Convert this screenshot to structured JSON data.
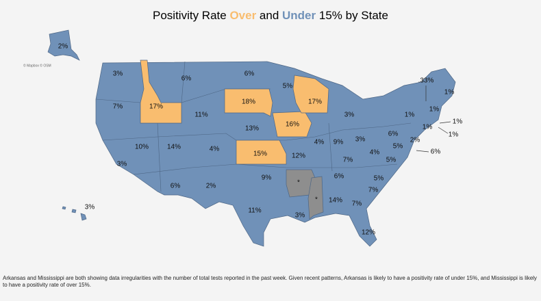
{
  "title": [
    "Positivity Rate ",
    "Over",
    " and ",
    "Under",
    " 15% by State"
  ],
  "attribution": "© Mapbox © OSM",
  "colors": {
    "over": "#f9bd6f",
    "under": "#7091b8",
    "irregular": "#8e8e8e",
    "text": "#111111"
  },
  "labels": {
    "under": [
      "2%",
      "3%",
      "6%",
      "6%",
      "5%",
      "7%",
      "11%",
      "13%",
      "3%",
      ".33%",
      "1%",
      "1%",
      "1%",
      "1%",
      "1%",
      "1%",
      "6%",
      "3%",
      "9%",
      "4%",
      "10%",
      "14%",
      "4%",
      "2%",
      "5%",
      "4%",
      "6%",
      "12%",
      "7%",
      "5%",
      "3%",
      "6%",
      "5%",
      "9%",
      "6%",
      "2%",
      "7%",
      "14%",
      "7%",
      "3%",
      "11%",
      "3%",
      "12%"
    ],
    "over": [
      "17%",
      "18%",
      "17%",
      "16%",
      "15%"
    ],
    "irregular": [
      "*",
      "*"
    ]
  },
  "footnote": "Arkansas and Mississippi are both showing data irregularities with the number of total tests reported in the past week. Given recent patterns, Arkansas is likely to have a positivity rate of under 15%, and Mississippi is likely to have a positivity rate of over 15%."
}
